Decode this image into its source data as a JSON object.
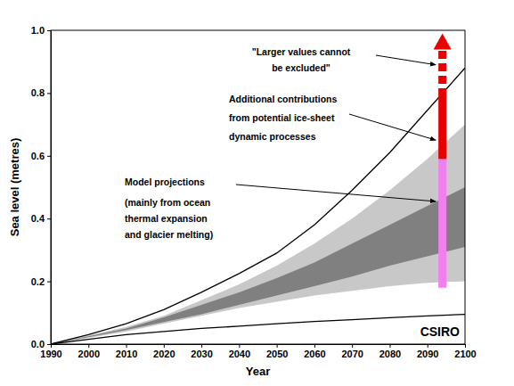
{
  "chart_data": {
    "type": "area",
    "x_label": "Year",
    "y_label": "Sea level (metres)",
    "credit": "CSIRO",
    "x": [
      1990,
      2000,
      2010,
      2020,
      2030,
      2040,
      2050,
      2060,
      2070,
      2080,
      2090,
      2100
    ],
    "xlim": [
      1990,
      2100
    ],
    "xticks": [
      1990,
      2000,
      2010,
      2020,
      2030,
      2040,
      2050,
      2060,
      2070,
      2080,
      2090,
      2100
    ],
    "ylim": [
      0,
      1
    ],
    "yticks": [
      {
        "value": 0,
        "label": "0.0"
      },
      0.2,
      0.4,
      0.6,
      0.8,
      {
        "value": 1,
        "label": "1.0"
      }
    ],
    "series": [
      {
        "type": "area",
        "color": "#c8c8c8",
        "lower": [
          0,
          0.02,
          0.04,
          0.065,
          0.09,
          0.115,
          0.135,
          0.155,
          0.17,
          0.185,
          0.195,
          0.2
        ],
        "values": [
          0,
          0.028,
          0.055,
          0.09,
          0.14,
          0.19,
          0.25,
          0.32,
          0.4,
          0.49,
          0.59,
          0.7
        ]
      },
      {
        "type": "area",
        "color": "#808080",
        "lower": [
          0,
          0.022,
          0.045,
          0.07,
          0.095,
          0.125,
          0.155,
          0.185,
          0.215,
          0.25,
          0.28,
          0.31
        ],
        "values": [
          0,
          0.025,
          0.05,
          0.085,
          0.125,
          0.165,
          0.21,
          0.26,
          0.32,
          0.38,
          0.44,
          0.5
        ]
      },
      {
        "type": "line",
        "color": "#000000",
        "values": [
          0,
          0.03,
          0.065,
          0.11,
          0.165,
          0.225,
          0.29,
          0.38,
          0.49,
          0.61,
          0.745,
          0.88
        ]
      },
      {
        "type": "line",
        "color": "#000000",
        "values": [
          0,
          0.015,
          0.03,
          0.04,
          0.05,
          0.057,
          0.065,
          0.072,
          0.078,
          0.084,
          0.09,
          0.095
        ]
      }
    ],
    "ranges": [
      {
        "x": 2094,
        "low": 0.18,
        "high": 0.59,
        "color": "#f080f0",
        "line_style": "solid",
        "label": [
          "Model projections"
        ],
        "detail": [
          "(mainly from ocean",
          "thermal expansion",
          "and glacier melting)"
        ]
      },
      {
        "x": 2094,
        "low": 0.59,
        "high": 0.79,
        "color": "#e60000",
        "line_style": "solid",
        "label": [
          "Additional contributions",
          "from potential ice-sheet",
          "dynamic processes"
        ]
      },
      {
        "x": 2094,
        "low": 0.79,
        "high": 0.99,
        "color": "#e60000",
        "line_style": "dashed",
        "marker": "arrow",
        "label": [
          "\"Larger values cannot",
          "be excluded\""
        ]
      }
    ]
  }
}
